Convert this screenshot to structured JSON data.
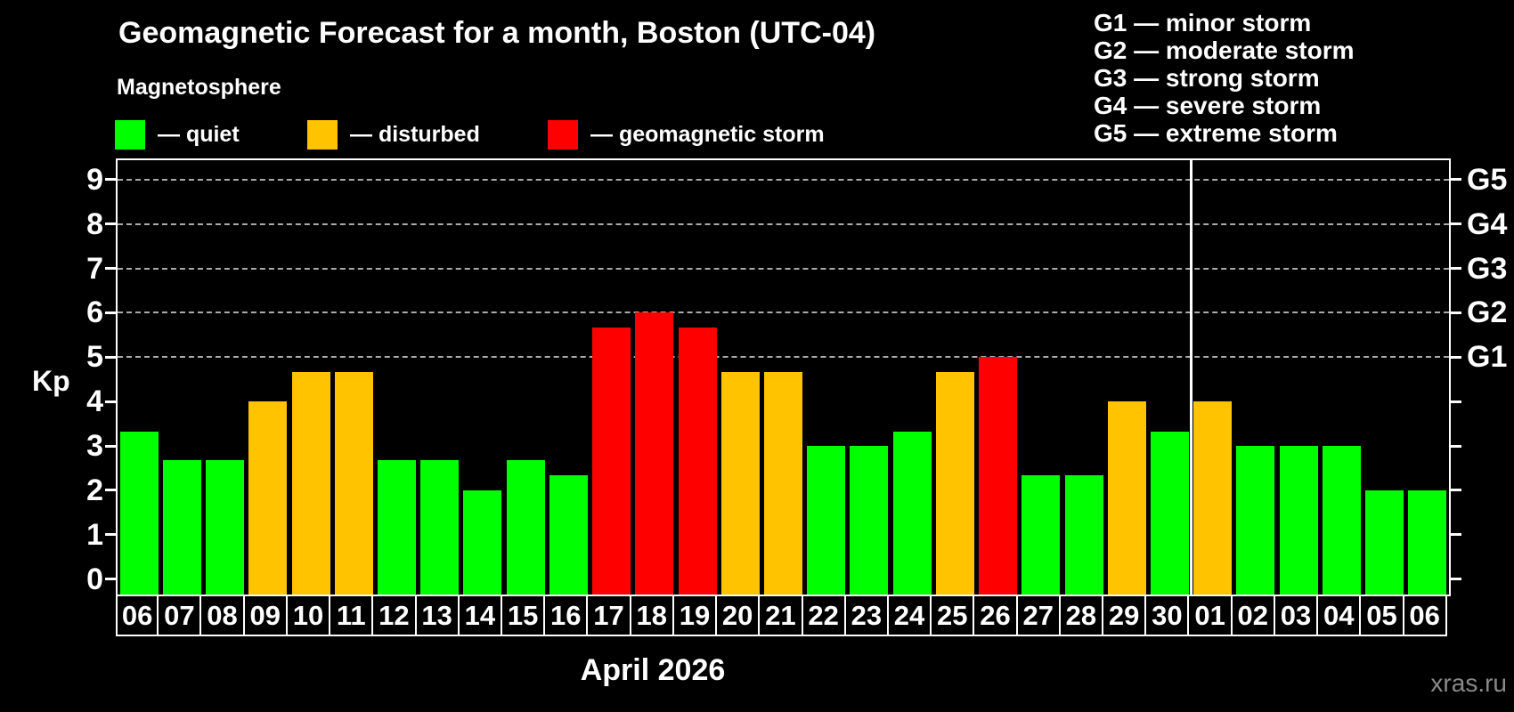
{
  "title": "Geomagnetic Forecast for a month, Boston (UTC-04)",
  "subtitle": "Magnetosphere",
  "legend": {
    "items": [
      {
        "key": "quiet",
        "label": "— quiet"
      },
      {
        "key": "disturbed",
        "label": "— disturbed"
      },
      {
        "key": "storm",
        "label": "— geomagnetic storm"
      }
    ]
  },
  "storm_scale": {
    "lines": [
      "G1 — minor storm",
      "G2 — moderate storm",
      "G3 — strong storm",
      "G4 — severe storm",
      "G5 — extreme storm"
    ]
  },
  "colors": {
    "quiet": "#00ff00",
    "disturbed": "#ffc300",
    "storm": "#ff0000",
    "grid": "#aaaaaa",
    "frame": "#ffffff",
    "background": "#000000",
    "watermark": "#8a8a8a"
  },
  "watermark": "xras.ru",
  "chart_data": {
    "type": "bar",
    "title": "Geomagnetic Forecast for a month, Boston (UTC-04)",
    "subtitle": "Magnetosphere",
    "xlabel": "April 2026",
    "ylabel": "Kp",
    "ylim": [
      0,
      9.5
    ],
    "yticks": [
      0,
      1,
      2,
      3,
      4,
      5,
      6,
      7,
      8,
      9
    ],
    "gridlines_at": [
      5,
      6,
      7,
      8,
      9
    ],
    "grid": true,
    "right_axis": [
      {
        "label": "G1",
        "kp": 5
      },
      {
        "label": "G2",
        "kp": 6
      },
      {
        "label": "G3",
        "kp": 7
      },
      {
        "label": "G4",
        "kp": 8
      },
      {
        "label": "G5",
        "kp": 9
      }
    ],
    "month_separator_after_index": 24,
    "categories": [
      "06",
      "07",
      "08",
      "09",
      "10",
      "11",
      "12",
      "13",
      "14",
      "15",
      "16",
      "17",
      "18",
      "19",
      "20",
      "21",
      "22",
      "23",
      "24",
      "25",
      "26",
      "27",
      "28",
      "29",
      "30",
      "01",
      "02",
      "03",
      "04",
      "05",
      "06"
    ],
    "values": [
      3.33,
      2.67,
      2.67,
      4.0,
      4.67,
      4.67,
      2.67,
      2.67,
      2.0,
      2.67,
      2.33,
      5.67,
      6.0,
      5.67,
      4.67,
      4.67,
      3.0,
      3.0,
      3.33,
      4.67,
      5.0,
      2.33,
      2.33,
      4.0,
      3.33,
      4.0,
      3.0,
      3.0,
      3.0,
      2.0,
      2.0
    ],
    "status": [
      "quiet",
      "quiet",
      "quiet",
      "disturbed",
      "disturbed",
      "disturbed",
      "quiet",
      "quiet",
      "quiet",
      "quiet",
      "quiet",
      "storm",
      "storm",
      "storm",
      "disturbed",
      "disturbed",
      "quiet",
      "quiet",
      "quiet",
      "disturbed",
      "storm",
      "quiet",
      "quiet",
      "disturbed",
      "quiet",
      "disturbed",
      "quiet",
      "quiet",
      "quiet",
      "quiet",
      "quiet"
    ]
  }
}
